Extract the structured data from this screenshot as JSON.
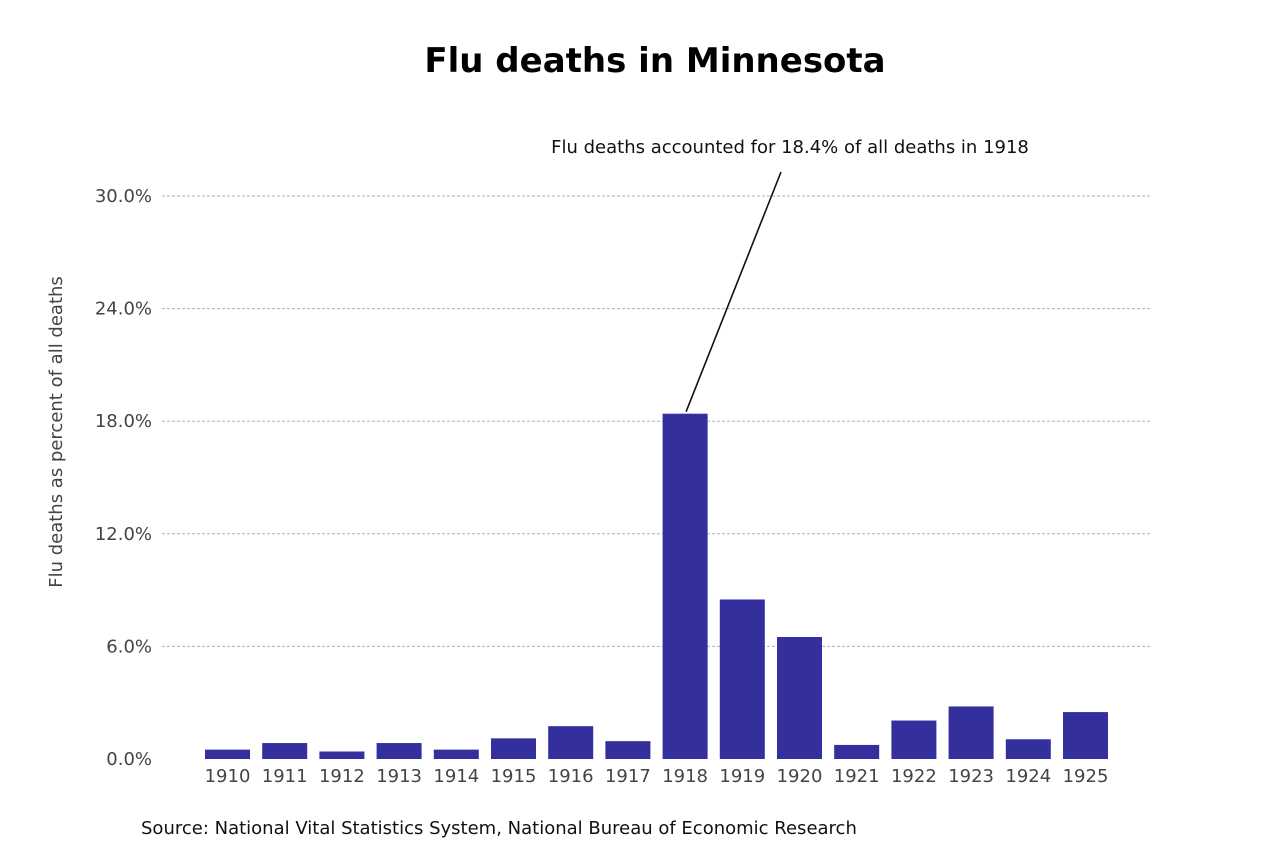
{
  "chart_data": {
    "type": "bar",
    "title": "Flu deaths in Minnesota",
    "xlabel": "",
    "ylabel": "Flu deaths as percent of all deaths",
    "categories": [
      "1910",
      "1911",
      "1912",
      "1913",
      "1914",
      "1915",
      "1916",
      "1917",
      "1918",
      "1919",
      "1920",
      "1921",
      "1922",
      "1923",
      "1924",
      "1925"
    ],
    "values": [
      0.5,
      0.85,
      0.4,
      0.85,
      0.5,
      1.1,
      1.75,
      0.95,
      18.4,
      8.5,
      6.5,
      0.75,
      2.05,
      2.8,
      1.05,
      2.5
    ],
    "ylim": [
      0,
      30
    ],
    "yticks": [
      "0.0%",
      "6.0%",
      "12.0%",
      "18.0%",
      "24.0%",
      "30.0%"
    ],
    "ytick_values": [
      0,
      6,
      12,
      18,
      24,
      30
    ],
    "grid": true,
    "bar_color": "#332f9c",
    "annotation": {
      "text": "Flu deaths accounted for 18.4% of all deaths in 1918",
      "target_category": "1918",
      "target_value": 18.4
    },
    "source": "Source: National Vital Statistics System, National Bureau of Economic Research"
  }
}
